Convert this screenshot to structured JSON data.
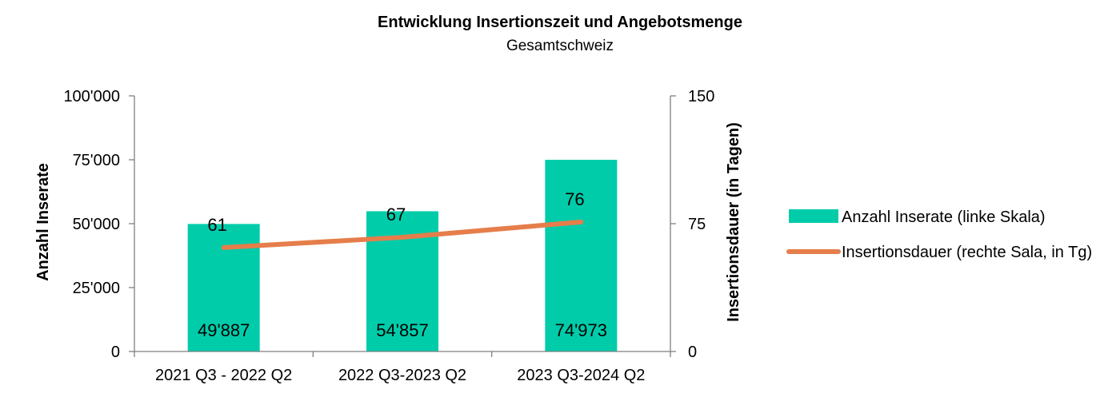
{
  "chart_data": {
    "type": "bar",
    "title": "Entwicklung Insertionszeit und Angebotsmenge",
    "subtitle": "Gesamtschweiz",
    "categories": [
      "2021 Q3 - 2022 Q2",
      "2022 Q3-2023 Q2",
      "2023 Q3-2024 Q2"
    ],
    "y_left": {
      "label": "Anzahl Inserate",
      "ylim": [
        0,
        100000
      ],
      "ticks": [
        0,
        25000,
        50000,
        75000,
        100000
      ],
      "tick_labels": [
        "0",
        "25'000",
        "50'000",
        "75'000",
        "100'000"
      ]
    },
    "y_right": {
      "label": "Insertionsdauer (in Tagen)",
      "ylim": [
        0,
        150
      ],
      "ticks": [
        0,
        75,
        150
      ],
      "tick_labels": [
        "0",
        "75",
        "150"
      ]
    },
    "series": [
      {
        "name": "Anzahl Inserate (linke Skala)",
        "type": "bar",
        "axis": "left",
        "color": "#00CCAA",
        "values": [
          49887,
          54857,
          74973
        ],
        "value_labels": [
          "49'887",
          "54'857",
          "74'973"
        ]
      },
      {
        "name": "Insertionsdauer (rechte Sala, in Tg)",
        "type": "line",
        "axis": "right",
        "color": "#E57E4B",
        "values": [
          61,
          67,
          76
        ],
        "value_labels": [
          "61",
          "67",
          "76"
        ]
      }
    ],
    "legend_position": "right",
    "grid": false
  }
}
